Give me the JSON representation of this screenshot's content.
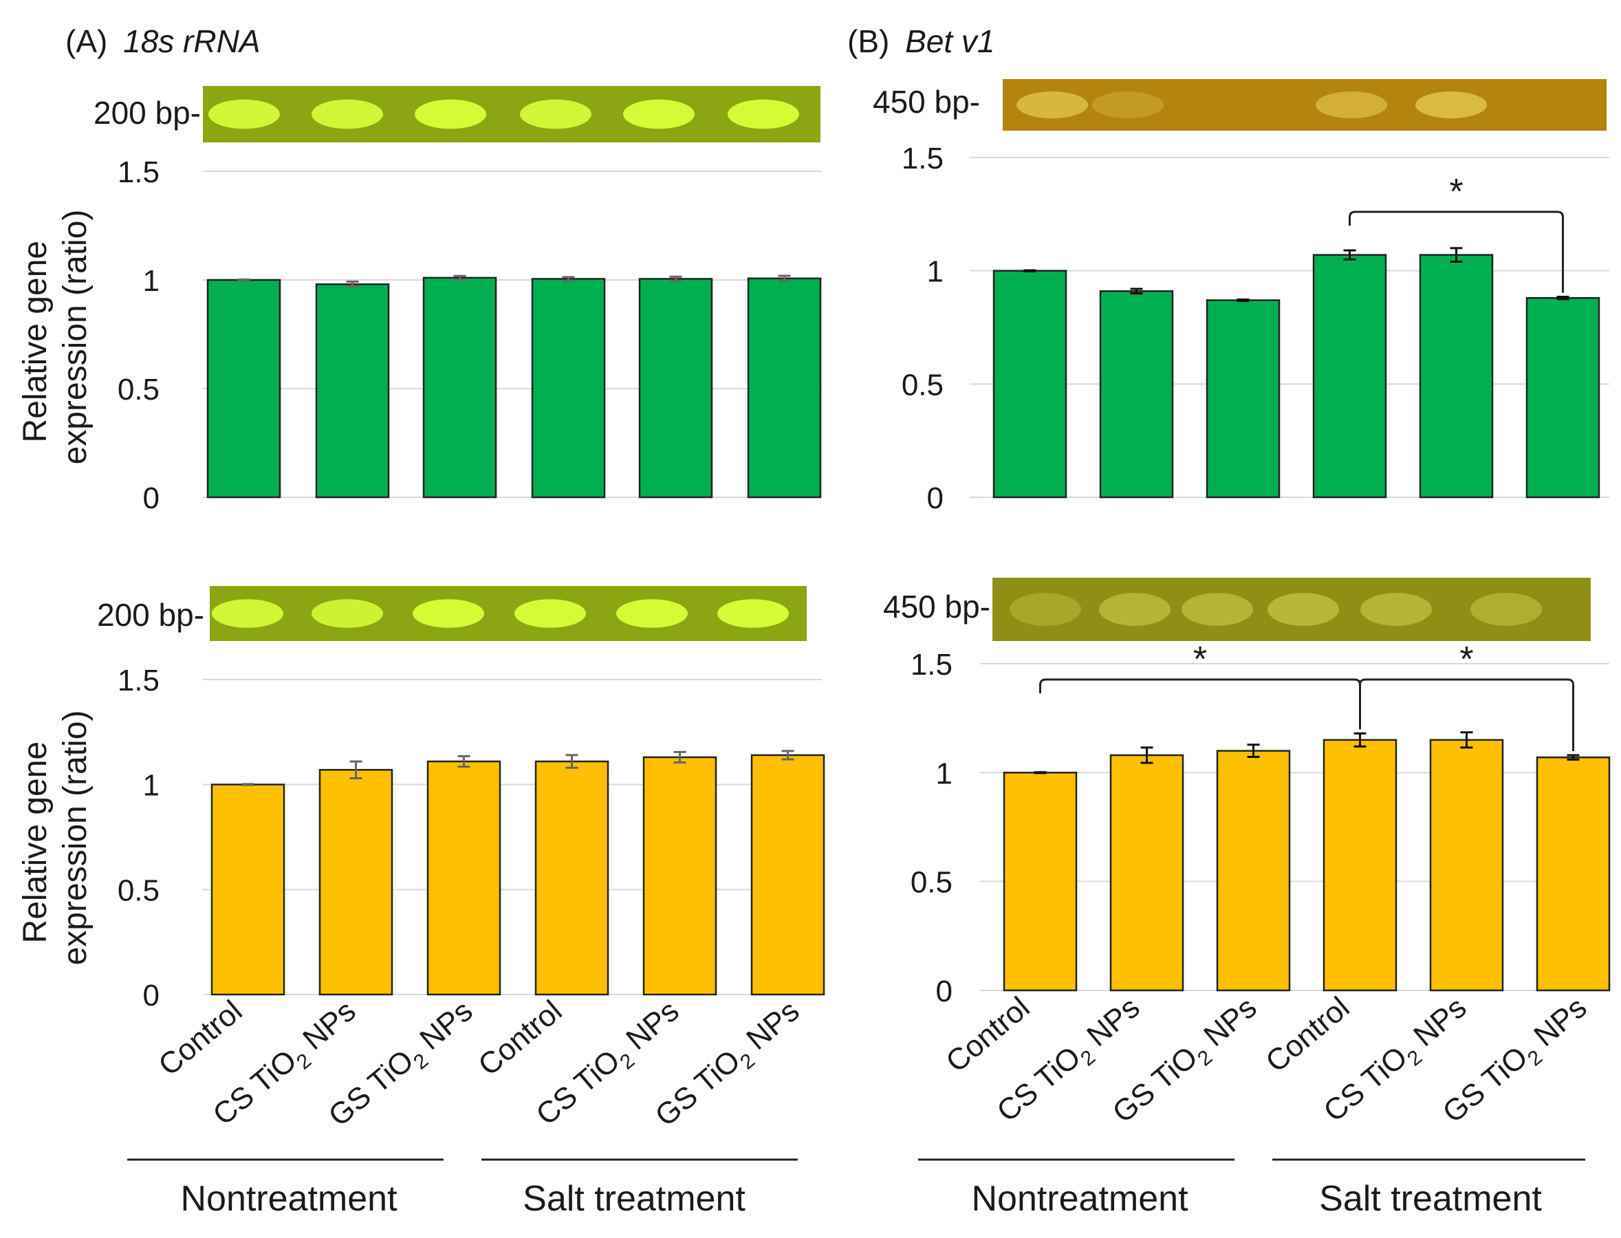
{
  "panel_a": {
    "letter": "(A)",
    "gene": "18s rRNA"
  },
  "panel_b": {
    "letter": "(B)",
    "gene": "Bet v1"
  },
  "gels": {
    "a_top": "200 bp-",
    "a_bottom": "200 bp-",
    "b_top": "450 bp-",
    "b_bottom": "450 bp-"
  },
  "ylabel_line1": "Relative gene",
  "ylabel_line2": "expression (ratio)",
  "x_labels": [
    {
      "pre": "Control",
      "sub": "",
      "post": ""
    },
    {
      "pre": "CS TiO",
      "sub": "2",
      "post": " NPs"
    },
    {
      "pre": "GS TiO",
      "sub": "2",
      "post": " NPs"
    },
    {
      "pre": "Control",
      "sub": "",
      "post": ""
    },
    {
      "pre": "CS TiO",
      "sub": "2",
      "post": " NPs"
    },
    {
      "pre": "GS TiO",
      "sub": "2",
      "post": " NPs"
    }
  ],
  "groups": [
    "Nontreatment",
    "Salt treatment"
  ],
  "colors": {
    "green": "#00b050",
    "orange": "#ffc000",
    "gel_green": "#8aa310",
    "gel_orange": "#b3840e"
  },
  "chart_data": [
    {
      "id": "a_top",
      "type": "bar",
      "color": "green",
      "ylim": [
        0,
        1.5
      ],
      "yticks": [
        "0",
        "0.5",
        "1",
        "1.5"
      ],
      "categories": [
        "Control",
        "CS TiO2 NPs",
        "GS TiO2 NPs",
        "Control",
        "CS TiO2 NPs",
        "GS TiO2 NPs"
      ],
      "values": [
        1.0,
        0.98,
        1.01,
        1.005,
        1.005,
        1.007
      ],
      "errors": [
        0.002,
        0.012,
        0.008,
        0.008,
        0.01,
        0.012
      ],
      "significance": []
    },
    {
      "id": "b_top",
      "type": "bar",
      "color": "green",
      "ylim": [
        0,
        1.5
      ],
      "yticks": [
        "0",
        "0.5",
        "1",
        "1.5"
      ],
      "categories": [
        "Control",
        "CS TiO2 NPs",
        "GS TiO2 NPs",
        "Control",
        "CS TiO2 NPs",
        "GS TiO2 NPs"
      ],
      "values": [
        1.0,
        0.91,
        0.87,
        1.07,
        1.07,
        0.88
      ],
      "errors": [
        0.002,
        0.01,
        0.003,
        0.02,
        0.03,
        0.005
      ],
      "significance": [
        {
          "from": 3,
          "to": 5,
          "label": "*"
        }
      ]
    },
    {
      "id": "a_bottom",
      "type": "bar",
      "color": "orange",
      "ylim": [
        0,
        1.5
      ],
      "yticks": [
        "0",
        "0.5",
        "1",
        "1.5"
      ],
      "categories": [
        "Control",
        "CS TiO2 NPs",
        "GS TiO2 NPs",
        "Control",
        "CS TiO2 NPs",
        "GS TiO2 NPs"
      ],
      "values": [
        1.0,
        1.07,
        1.11,
        1.11,
        1.13,
        1.14
      ],
      "errors": [
        0.002,
        0.04,
        0.025,
        0.03,
        0.025,
        0.02
      ],
      "significance": []
    },
    {
      "id": "b_bottom",
      "type": "bar",
      "color": "orange",
      "ylim": [
        0,
        1.5
      ],
      "yticks": [
        "0",
        "0.5",
        "1",
        "1.5"
      ],
      "categories": [
        "Control",
        "CS TiO2 NPs",
        "GS TiO2 NPs",
        "Control",
        "CS TiO2 NPs",
        "GS TiO2 NPs"
      ],
      "values": [
        1.0,
        1.08,
        1.1,
        1.15,
        1.15,
        1.07
      ],
      "errors": [
        0.002,
        0.035,
        0.028,
        0.03,
        0.035,
        0.01
      ],
      "significance": [
        {
          "from": 0,
          "to": 3,
          "label": "*"
        },
        {
          "from": 3,
          "to": 5,
          "label": "*"
        }
      ]
    }
  ]
}
